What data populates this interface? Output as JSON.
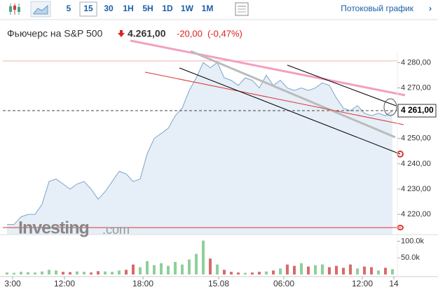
{
  "toolbar": {
    "intervals": [
      "5",
      "15",
      "30",
      "1H",
      "5H",
      "1D",
      "1W",
      "1M"
    ],
    "active_index": 1,
    "stream_link": "Потоковый график"
  },
  "header": {
    "instrument": "Фьючерс на S&P 500",
    "price": "4.261,00",
    "change": "-20,00",
    "change_pct": "(-0,47%)"
  },
  "chart_data": {
    "type": "area",
    "watermark": [
      "Investing",
      ".com"
    ],
    "series": [
      {
        "name": "S&P 500",
        "color": "#7ea4c8",
        "values": [
          4216,
          4216,
          4219,
          4220,
          4220,
          4224,
          4233,
          4234,
          4232,
          4230,
          4232,
          4233,
          4230,
          4226,
          4229,
          4233,
          4237,
          4236,
          4233,
          4234,
          4244,
          4250,
          4252,
          4254,
          4259,
          4262,
          4269,
          4274,
          4280,
          4278,
          4280,
          4274,
          4273,
          4271,
          4274,
          4273,
          4270,
          4275,
          4271,
          4273,
          4270,
          4269,
          4270,
          4269,
          4270,
          4272,
          4271,
          4266,
          4262,
          4261,
          4263,
          4260,
          4259,
          4260,
          4259,
          4261
        ]
      }
    ],
    "volume": {
      "up_color": "#8fcf9a",
      "down_color": "#d96a6a",
      "values": [
        6000,
        5000,
        8000,
        7000,
        6000,
        9000,
        14000,
        12000,
        8000,
        7000,
        9000,
        8000,
        6000,
        10000,
        9000,
        8000,
        12000,
        14000,
        30000,
        22000,
        40000,
        28000,
        34000,
        26000,
        38000,
        30000,
        45000,
        62000,
        102000,
        48000,
        30000,
        14000,
        8000,
        6000,
        5000,
        6000,
        8000,
        9000,
        12000,
        18000,
        30000,
        26000,
        34000,
        24000,
        28000,
        30000,
        22000,
        26000,
        20000,
        30000,
        18000,
        24000,
        22000,
        12000,
        20000,
        16000
      ]
    },
    "ylim": [
      4212,
      4284
    ],
    "yticks": [
      {
        "value": 4220,
        "label": "4 220,00"
      },
      {
        "value": 4230,
        "label": "4 230,00"
      },
      {
        "value": 4240,
        "label": "4 240,00"
      },
      {
        "value": 4250,
        "label": "4 250,00"
      },
      {
        "value": 4270,
        "label": "4 270,00"
      },
      {
        "value": 4280,
        "label": "4 280,00"
      }
    ],
    "vol_ylim": [
      0,
      120000
    ],
    "vol_ticks": [
      {
        "value": 50000,
        "label": "50.0k"
      },
      {
        "value": 100000,
        "label": "100.0k"
      }
    ],
    "xticks": [
      {
        "value": 0.8,
        "label": "3:00"
      },
      {
        "value": 8.2,
        "label": "12:00"
      },
      {
        "value": 19.4,
        "label": "18:00"
      },
      {
        "value": 30.2,
        "label": "15.08"
      },
      {
        "value": 39.5,
        "label": "06:00"
      },
      {
        "value": 50.7,
        "label": "12:00"
      },
      {
        "value": 55.2,
        "label": "14"
      }
    ],
    "last_value": 4261,
    "last_label": "4 261,00"
  }
}
